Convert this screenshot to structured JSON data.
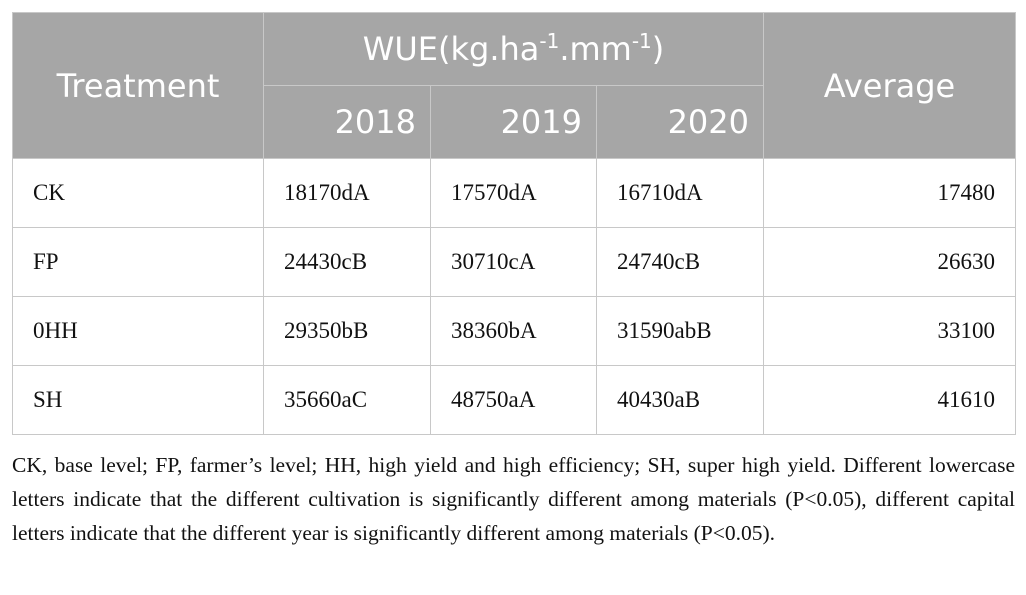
{
  "table": {
    "header": {
      "treatment": "Treatment",
      "group": [
        "WUE(kg.ha",
        "-1",
        ".mm",
        "-1",
        ")"
      ],
      "years": [
        "2018",
        "2019",
        "2020"
      ],
      "average": "Average"
    },
    "rows": [
      [
        "CK",
        "18170dA",
        "17570dA",
        "16710dA",
        17480
      ],
      [
        "FP",
        "24430cB",
        "30710cA",
        "24740cB",
        26630
      ],
      [
        "0HH",
        "29350bB",
        "38360bA",
        "31590abB",
        33100
      ],
      [
        "SH",
        "35660aC",
        "48750aA",
        "40430aB",
        41610
      ]
    ]
  },
  "footnote": "CK, base level; FP, farmer’s level; HH, high yield and high efficiency; SH, super high yield. Different lowercase letters indicate that the different cultivation is significantly different among materials (P<0.05), different capital letters indicate that the different year is significantly different among materials (P<0.05)."
}
